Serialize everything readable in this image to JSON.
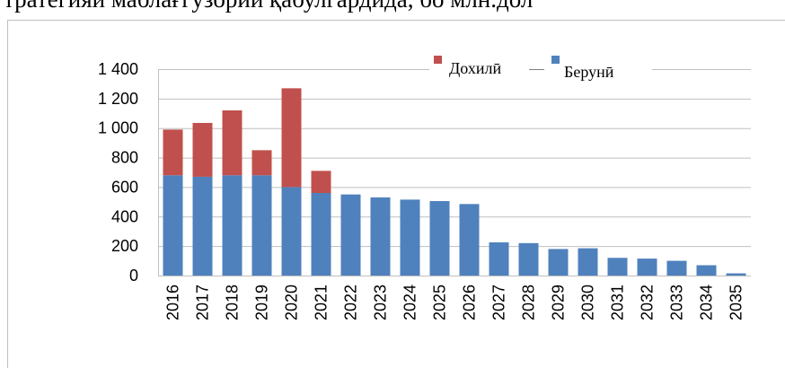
{
  "chart_data": {
    "type": "stacked-bar",
    "title": "тратегияи маблағгузории қабулгардида, бо млн.дол",
    "categories": [
      "2016",
      "2017",
      "2018",
      "2019",
      "2020",
      "2021",
      "2022",
      "2023",
      "2024",
      "2025",
      "2026",
      "2027",
      "2028",
      "2029",
      "2030",
      "2031",
      "2032",
      "2033",
      "2034",
      "2035"
    ],
    "series": [
      {
        "name": "Берунӣ",
        "color": "#4f81bd",
        "values": [
          680,
          670,
          680,
          680,
          600,
          560,
          550,
          530,
          515,
          505,
          485,
          225,
          220,
          180,
          185,
          120,
          115,
          100,
          70,
          15
        ]
      },
      {
        "name": "Дохилӣ",
        "color": "#c0504d",
        "values": [
          310,
          365,
          440,
          170,
          670,
          150,
          0,
          0,
          0,
          0,
          0,
          0,
          0,
          0,
          0,
          0,
          0,
          0,
          0,
          0
        ]
      }
    ],
    "ylim": [
      0,
      1400
    ],
    "yticks": [
      0,
      200,
      400,
      600,
      800,
      {
        "value": 1000,
        "label": "1 000"
      },
      {
        "value": 1200,
        "label": "1 200"
      },
      {
        "value": 1400,
        "label": "1 400"
      }
    ],
    "grid": true,
    "legend": "top"
  }
}
